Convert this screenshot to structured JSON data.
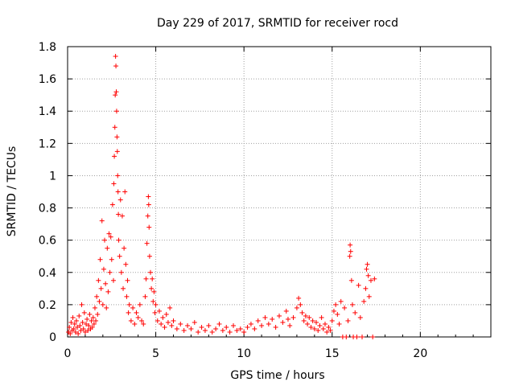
{
  "chart_data": {
    "type": "scatter",
    "title": "Day 229 of 2017, SRMTID for receiver rocd",
    "xlabel": "GPS time / hours",
    "ylabel": "SRMTID / TECUs",
    "xlim": [
      0,
      24
    ],
    "ylim": [
      0,
      1.8
    ],
    "grid": true,
    "x_ticks": [
      0,
      5,
      10,
      15,
      20
    ],
    "x_tick_labels": [
      "0",
      "5",
      "10",
      "15",
      "20"
    ],
    "y_ticks": [
      0,
      0.2,
      0.4,
      0.6,
      0.8,
      1.0,
      1.2,
      1.4,
      1.6,
      1.8
    ],
    "y_tick_labels": [
      "0",
      "0.2",
      "0.4",
      "0.6",
      "0.8",
      "1",
      "1.2",
      "1.4",
      "1.6",
      "1.8"
    ],
    "marker": "plus",
    "color": "#ff0000",
    "series": [
      {
        "name": "SRMTID",
        "points": [
          [
            0.05,
            0.03
          ],
          [
            0.1,
            0.06
          ],
          [
            0.15,
            0.02
          ],
          [
            0.2,
            0.09
          ],
          [
            0.25,
            0.04
          ],
          [
            0.3,
            0.12
          ],
          [
            0.35,
            0.05
          ],
          [
            0.4,
            0.08
          ],
          [
            0.45,
            0.03
          ],
          [
            0.5,
            0.1
          ],
          [
            0.55,
            0.06
          ],
          [
            0.6,
            0.02
          ],
          [
            0.65,
            0.13
          ],
          [
            0.7,
            0.07
          ],
          [
            0.75,
            0.04
          ],
          [
            0.8,
            0.2
          ],
          [
            0.85,
            0.09
          ],
          [
            0.9,
            0.05
          ],
          [
            0.95,
            0.15
          ],
          [
            1.0,
            0.03
          ],
          [
            1.05,
            0.08
          ],
          [
            1.1,
            0.11
          ],
          [
            1.15,
            0.04
          ],
          [
            1.2,
            0.07
          ],
          [
            1.25,
            0.14
          ],
          [
            1.3,
            0.05
          ],
          [
            1.35,
            0.1
          ],
          [
            1.4,
            0.06
          ],
          [
            1.45,
            0.12
          ],
          [
            1.5,
            0.08
          ],
          [
            1.55,
            0.18
          ],
          [
            1.6,
            0.1
          ],
          [
            1.65,
            0.25
          ],
          [
            1.7,
            0.14
          ],
          [
            1.75,
            0.35
          ],
          [
            1.8,
            0.22
          ],
          [
            1.85,
            0.48
          ],
          [
            1.9,
            0.3
          ],
          [
            1.95,
            0.72
          ],
          [
            2.0,
            0.2
          ],
          [
            2.05,
            0.42
          ],
          [
            2.1,
            0.6
          ],
          [
            2.15,
            0.33
          ],
          [
            2.2,
            0.18
          ],
          [
            2.25,
            0.55
          ],
          [
            2.3,
            0.28
          ],
          [
            2.35,
            0.64
          ],
          [
            2.4,
            0.4
          ],
          [
            2.45,
            0.62
          ],
          [
            2.5,
            0.48
          ],
          [
            2.55,
            0.82
          ],
          [
            2.6,
            0.35
          ],
          [
            2.62,
            0.95
          ],
          [
            2.65,
            1.12
          ],
          [
            2.68,
            1.3
          ],
          [
            2.7,
            1.5
          ],
          [
            2.72,
            1.74
          ],
          [
            2.74,
            1.68
          ],
          [
            2.76,
            1.52
          ],
          [
            2.78,
            1.4
          ],
          [
            2.8,
            1.24
          ],
          [
            2.82,
            1.15
          ],
          [
            2.84,
            1.0
          ],
          [
            2.86,
            0.9
          ],
          [
            2.88,
            0.76
          ],
          [
            2.9,
            0.6
          ],
          [
            2.95,
            0.5
          ],
          [
            3.0,
            0.85
          ],
          [
            3.05,
            0.4
          ],
          [
            3.1,
            0.75
          ],
          [
            3.15,
            0.3
          ],
          [
            3.2,
            0.55
          ],
          [
            3.25,
            0.9
          ],
          [
            3.3,
            0.45
          ],
          [
            3.35,
            0.25
          ],
          [
            3.4,
            0.35
          ],
          [
            3.45,
            0.15
          ],
          [
            3.5,
            0.2
          ],
          [
            3.6,
            0.1
          ],
          [
            3.7,
            0.18
          ],
          [
            3.8,
            0.08
          ],
          [
            3.9,
            0.15
          ],
          [
            4.0,
            0.12
          ],
          [
            4.1,
            0.2
          ],
          [
            4.2,
            0.1
          ],
          [
            4.3,
            0.08
          ],
          [
            4.4,
            0.25
          ],
          [
            4.45,
            0.36
          ],
          [
            4.5,
            0.58
          ],
          [
            4.55,
            0.75
          ],
          [
            4.58,
            0.87
          ],
          [
            4.6,
            0.82
          ],
          [
            4.62,
            0.68
          ],
          [
            4.65,
            0.5
          ],
          [
            4.7,
            0.4
          ],
          [
            4.75,
            0.3
          ],
          [
            4.8,
            0.36
          ],
          [
            4.85,
            0.22
          ],
          [
            4.9,
            0.28
          ],
          [
            4.95,
            0.15
          ],
          [
            5.0,
            0.2
          ],
          [
            5.1,
            0.1
          ],
          [
            5.2,
            0.16
          ],
          [
            5.3,
            0.08
          ],
          [
            5.4,
            0.12
          ],
          [
            5.5,
            0.06
          ],
          [
            5.6,
            0.14
          ],
          [
            5.7,
            0.09
          ],
          [
            5.8,
            0.18
          ],
          [
            5.9,
            0.07
          ],
          [
            6.0,
            0.1
          ],
          [
            6.2,
            0.05
          ],
          [
            6.4,
            0.08
          ],
          [
            6.6,
            0.04
          ],
          [
            6.8,
            0.07
          ],
          [
            7.0,
            0.05
          ],
          [
            7.2,
            0.09
          ],
          [
            7.4,
            0.03
          ],
          [
            7.6,
            0.06
          ],
          [
            7.8,
            0.04
          ],
          [
            8.0,
            0.07
          ],
          [
            8.2,
            0.03
          ],
          [
            8.4,
            0.05
          ],
          [
            8.6,
            0.08
          ],
          [
            8.8,
            0.04
          ],
          [
            9.0,
            0.06
          ],
          [
            9.2,
            0.03
          ],
          [
            9.4,
            0.07
          ],
          [
            9.6,
            0.04
          ],
          [
            9.8,
            0.05
          ],
          [
            10.0,
            0.03
          ],
          [
            10.2,
            0.06
          ],
          [
            10.4,
            0.08
          ],
          [
            10.6,
            0.05
          ],
          [
            10.8,
            0.1
          ],
          [
            11.0,
            0.07
          ],
          [
            11.2,
            0.12
          ],
          [
            11.4,
            0.08
          ],
          [
            11.6,
            0.11
          ],
          [
            11.8,
            0.06
          ],
          [
            12.0,
            0.13
          ],
          [
            12.2,
            0.09
          ],
          [
            12.4,
            0.16
          ],
          [
            12.5,
            0.11
          ],
          [
            12.6,
            0.07
          ],
          [
            12.8,
            0.12
          ],
          [
            13.0,
            0.18
          ],
          [
            13.1,
            0.24
          ],
          [
            13.2,
            0.2
          ],
          [
            13.3,
            0.15
          ],
          [
            13.4,
            0.1
          ],
          [
            13.5,
            0.13
          ],
          [
            13.6,
            0.08
          ],
          [
            13.7,
            0.12
          ],
          [
            13.8,
            0.06
          ],
          [
            13.9,
            0.1
          ],
          [
            14.0,
            0.05
          ],
          [
            14.1,
            0.09
          ],
          [
            14.2,
            0.04
          ],
          [
            14.3,
            0.07
          ],
          [
            14.4,
            0.12
          ],
          [
            14.5,
            0.05
          ],
          [
            14.6,
            0.08
          ],
          [
            14.7,
            0.03
          ],
          [
            14.8,
            0.06
          ],
          [
            14.9,
            0.04
          ],
          [
            15.0,
            0.1
          ],
          [
            15.1,
            0.16
          ],
          [
            15.2,
            0.2
          ],
          [
            15.3,
            0.14
          ],
          [
            15.4,
            0.08
          ],
          [
            15.5,
            0.22
          ],
          [
            15.6,
            0.0
          ],
          [
            15.7,
            0.18
          ],
          [
            15.8,
            0.0
          ],
          [
            15.9,
            0.1
          ],
          [
            16.0,
            0.5
          ],
          [
            16.02,
            0.57
          ],
          [
            16.05,
            0.53
          ],
          [
            16.1,
            0.35
          ],
          [
            16.15,
            0.2
          ],
          [
            16.2,
            0.0
          ],
          [
            16.3,
            0.15
          ],
          [
            16.4,
            0.0
          ],
          [
            16.5,
            0.32
          ],
          [
            16.6,
            0.12
          ],
          [
            16.7,
            0.0
          ],
          [
            16.8,
            0.22
          ],
          [
            16.9,
            0.3
          ],
          [
            16.95,
            0.42
          ],
          [
            17.0,
            0.45
          ],
          [
            17.05,
            0.38
          ],
          [
            17.1,
            0.25
          ],
          [
            17.2,
            0.35
          ],
          [
            17.3,
            0.0
          ],
          [
            17.4,
            0.36
          ]
        ]
      }
    ]
  }
}
